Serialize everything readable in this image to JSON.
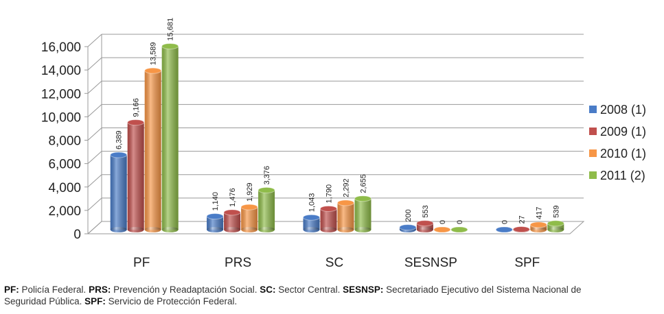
{
  "chart_data": {
    "type": "bar",
    "categories": [
      "PF",
      "PRS",
      "SC",
      "SESNSP",
      "SPF"
    ],
    "series": [
      {
        "name": "2008 (1)",
        "color": "#4a7cc7",
        "values": [
          6389,
          1140,
          1043,
          200,
          0
        ],
        "value_labels": [
          "6,389",
          "1,140",
          "1,043",
          "200",
          "0"
        ]
      },
      {
        "name": "2009 (1)",
        "color": "#c0504d",
        "values": [
          9166,
          1476,
          1790,
          553,
          27
        ],
        "value_labels": [
          "9,166",
          "1,476",
          "1,790",
          "553",
          "27"
        ]
      },
      {
        "name": "2010 (1)",
        "color": "#f79646",
        "values": [
          13589,
          1929,
          2292,
          0,
          417
        ],
        "value_labels": [
          "13,589",
          "1,929",
          "2,292",
          "0",
          "417"
        ]
      },
      {
        "name": "2011 (2)",
        "color": "#8fbc4a",
        "values": [
          15681,
          3376,
          2655,
          0,
          539
        ],
        "value_labels": [
          "15,681",
          "3,376",
          "2,655",
          "0",
          "539"
        ]
      }
    ],
    "ylim": [
      0,
      16000
    ],
    "yticks": [
      0,
      {
        "value": 2000,
        "label": "2,000"
      },
      {
        "value": 4000,
        "label": "4,000"
      },
      {
        "value": 6000,
        "label": "6,000"
      },
      {
        "value": 8000,
        "label": "8,000"
      },
      {
        "value": 10000,
        "label": "10,000"
      },
      {
        "value": 12000,
        "label": "12,000"
      },
      {
        "value": 14000,
        "label": "14,000"
      },
      {
        "value": 16000,
        "label": "16,000"
      }
    ],
    "grid": true,
    "legend": "right"
  },
  "notes": [
    {
      "abbr": "PF:",
      "text": "Policía Federal."
    },
    {
      "abbr": "PRS:",
      "text": "Prevención y Readaptación Social."
    },
    {
      "abbr": "SC:",
      "text": "Sector Central."
    },
    {
      "abbr": "SESNSP:",
      "text": "Secretariado Ejecutivo del Sistema Nacional  de Seguridad Pública."
    },
    {
      "abbr": "SPF:",
      "text": "Servicio de Protección Federal."
    }
  ]
}
